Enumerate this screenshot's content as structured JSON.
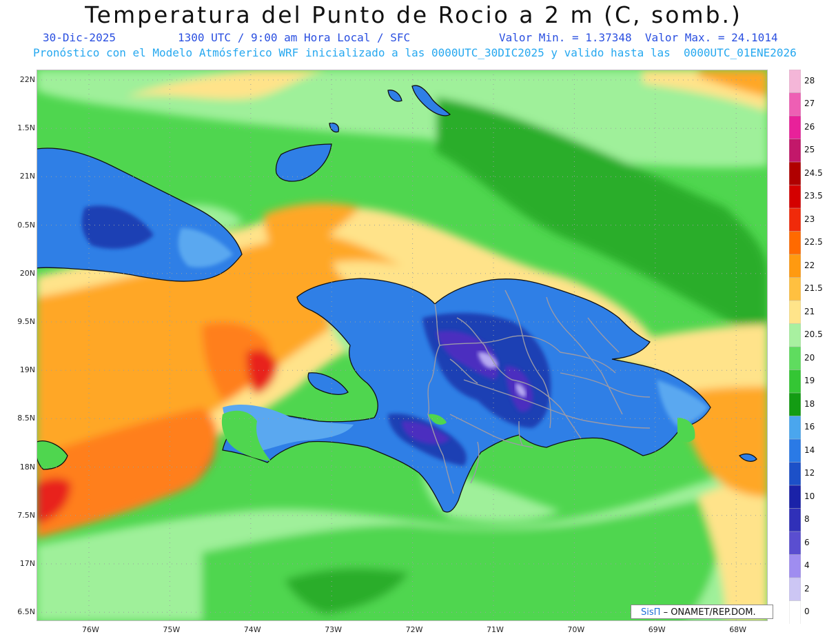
{
  "header": {
    "title": "Temperatura del Punto de Rocio a 2 m (C, somb.)",
    "date": "30-Dic-2025",
    "time": "1300 UTC / 9:00 am Hora Local / SFC",
    "minmax": "Valor Min. = 1.37348  Valor Max. = 24.1014",
    "forecast": "Pronóstico con el Modelo Atmósferico WRF inicializado a las 0000UTC_30DIC2025 y valido hasta las  0000UTC_01ENE2026"
  },
  "axes": {
    "lat_labels": [
      "22N",
      "1.5N",
      "21N",
      "0.5N",
      "20N",
      "9.5N",
      "19N",
      "8.5N",
      "18N",
      "7.5N",
      "17N",
      "6.5N"
    ],
    "lon_labels": [
      "76W",
      "75W",
      "74W",
      "73W",
      "72W",
      "71W",
      "70W",
      "69W",
      "68W"
    ]
  },
  "colorbar": {
    "labels": [
      "28",
      "27",
      "26",
      "25",
      "24.5",
      "23.5",
      "23",
      "22.5",
      "22",
      "21.5",
      "21",
      "20.5",
      "20",
      "19",
      "18",
      "16",
      "14",
      "12",
      "10",
      "8",
      "6",
      "4",
      "2",
      "0"
    ],
    "colors": [
      "#f4b6d8",
      "#ee5fb4",
      "#e8219a",
      "#c2186a",
      "#b00000",
      "#d40000",
      "#f02a0a",
      "#ff6a00",
      "#ff9a10",
      "#ffc040",
      "#ffe48a",
      "#a8f0a0",
      "#5fdc5f",
      "#34c634",
      "#139c13",
      "#4aa6ee",
      "#2a7ae6",
      "#1c50c8",
      "#1a22a8",
      "#3030b8",
      "#5a4ed0",
      "#9f8df0",
      "#ccc6f4",
      "#ffffff"
    ]
  },
  "palette": {
    "sea_green": "#4fd64f",
    "sea_dark_green": "#2aad2a",
    "light_green": "#9ff09a",
    "yellow": "#ffe38a",
    "orange": "#ffa726",
    "dark_orange": "#ff7f1a",
    "red": "#e8201a",
    "land_blue": "#2f7fe6",
    "land_light_blue": "#5aa8f0",
    "land_dark_blue": "#1d3fb4",
    "land_purple": "#4b2fbf",
    "land_lavender": "#b6a9f2",
    "border_gray": "#9a9aa8",
    "coast_black": "#111111"
  },
  "credit": {
    "system": "SisΠ",
    "agency": "– ONAMET/REP.DOM."
  }
}
